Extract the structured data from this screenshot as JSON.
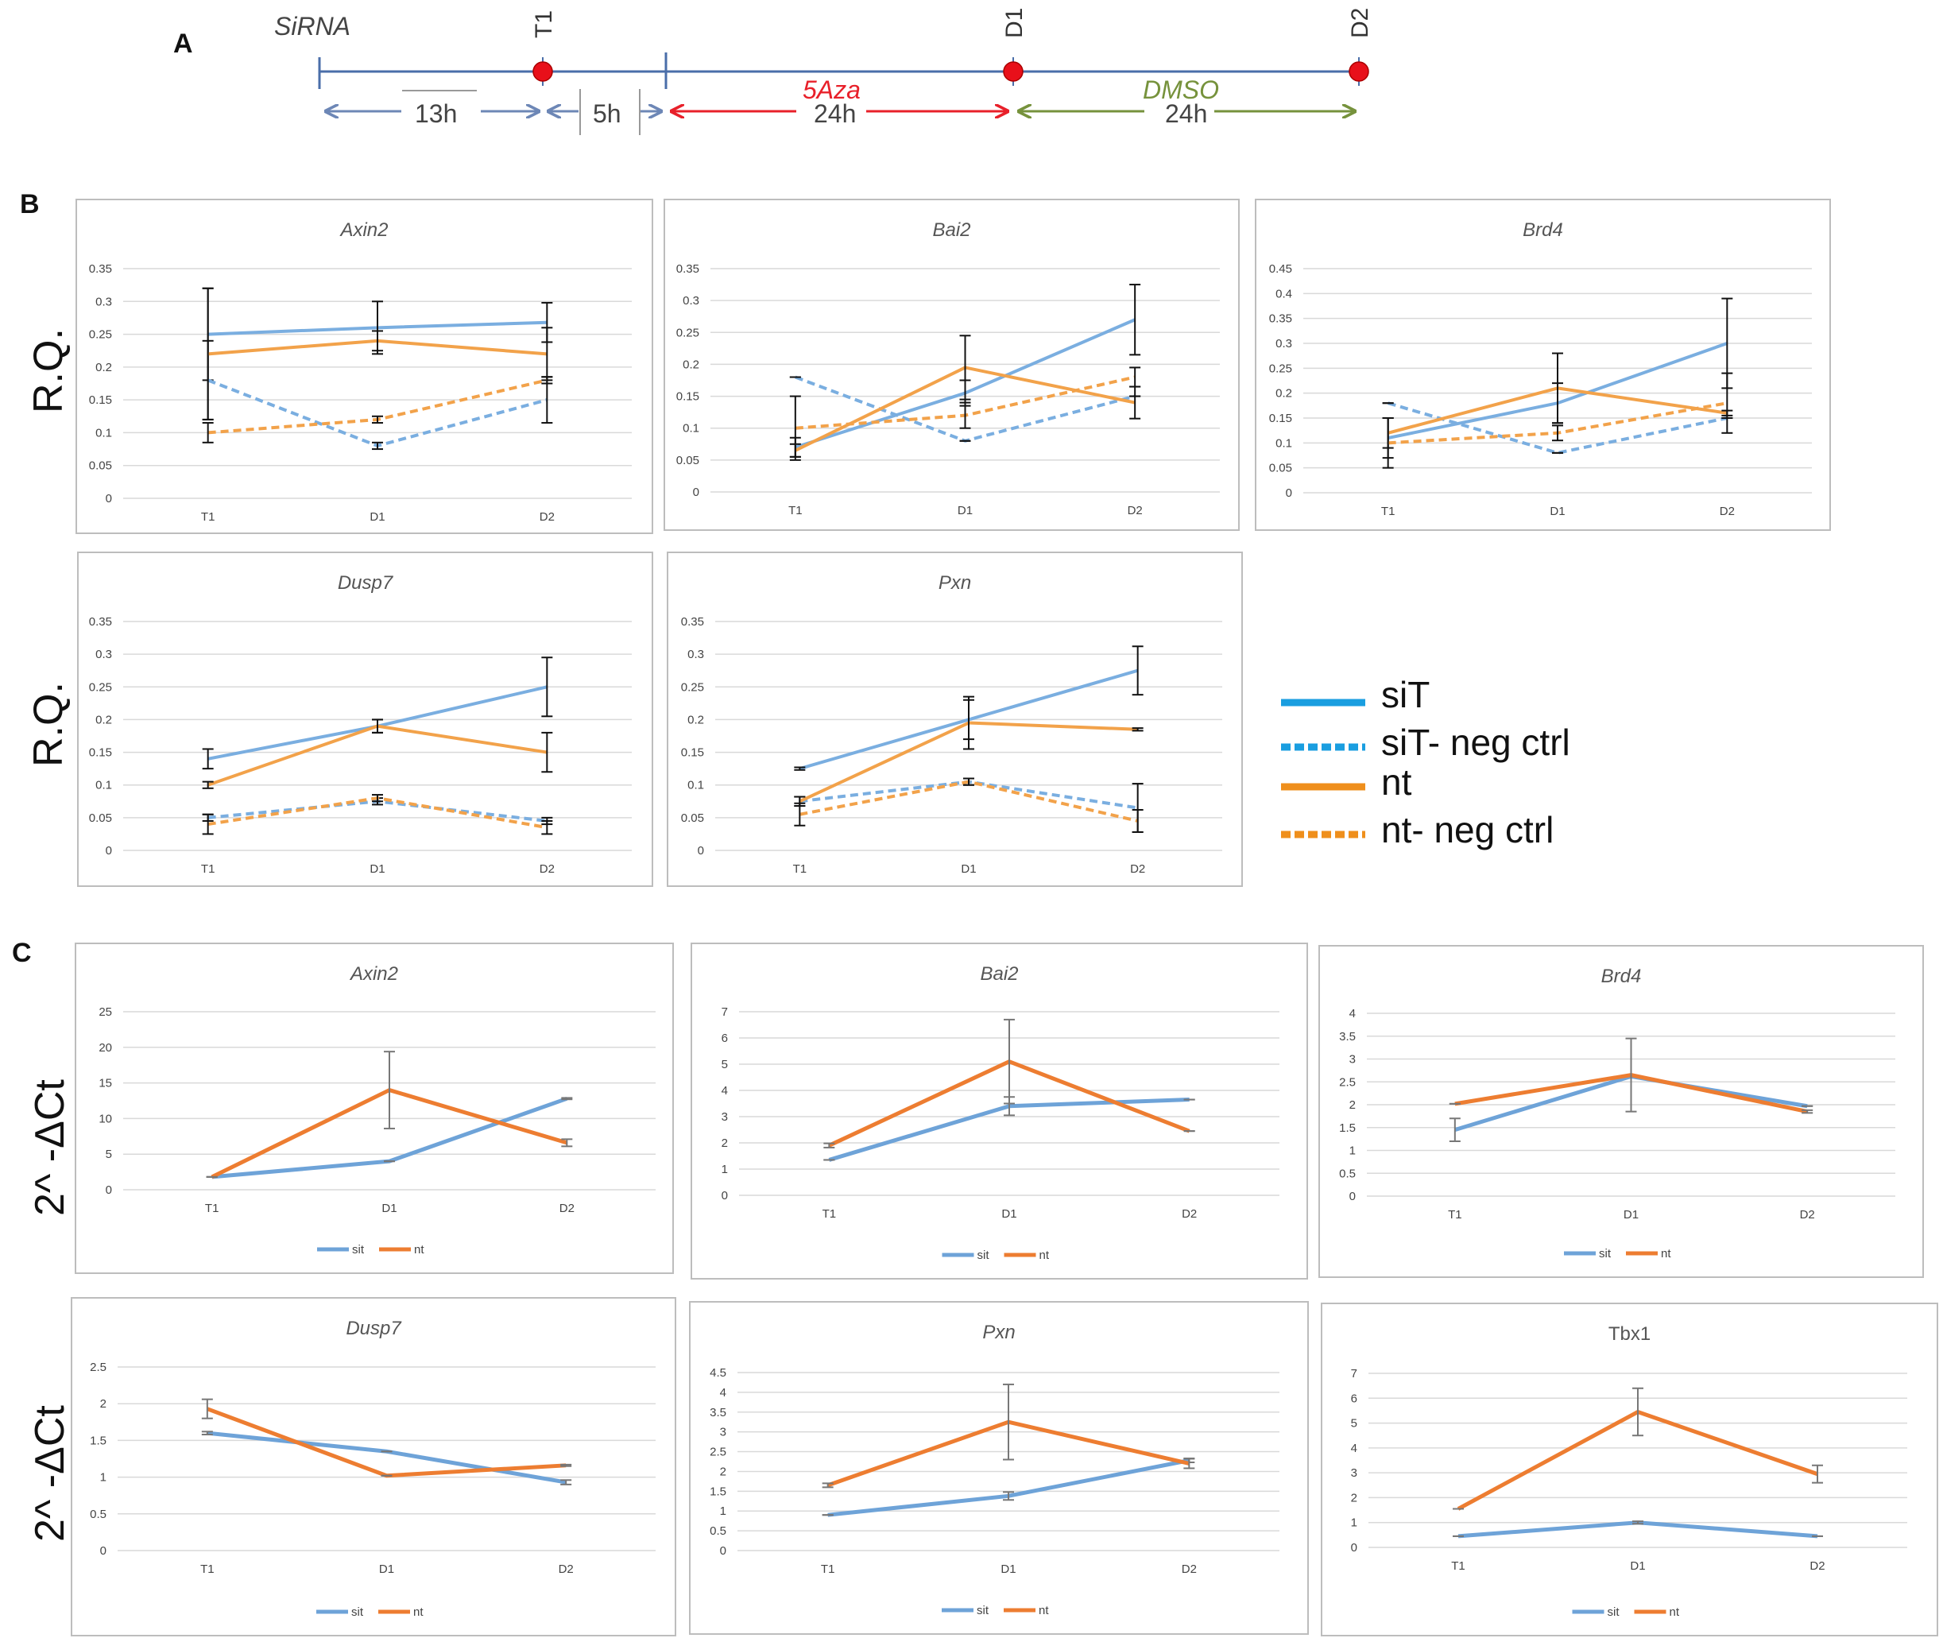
{
  "panels": {
    "a": "A",
    "b": "B",
    "c": "C"
  },
  "timeline": {
    "treatment": "SiRNA",
    "timepoints": [
      "T1",
      "D1",
      "D2"
    ],
    "durations": [
      "13h",
      "5h",
      "24h",
      "24h"
    ],
    "drugs": [
      "5Aza",
      "DMSO"
    ],
    "colors": {
      "axis": "#4a6ea9",
      "aza": "#e8202a",
      "dmso": "#76923c",
      "dot": "#e8101a"
    }
  },
  "ylabels": {
    "b": "R.Q.",
    "c": "2^ -ΔCt"
  },
  "legend_b": {
    "items": [
      {
        "label": "siT",
        "color": "#1a9ee0",
        "dashed": false
      },
      {
        "label": "siT- neg ctrl",
        "color": "#1a9ee0",
        "dashed": true
      },
      {
        "label": "nt",
        "color": "#ef8f1c",
        "dashed": false
      },
      {
        "label": "nt- neg ctrl",
        "color": "#ef8f1c",
        "dashed": true
      }
    ]
  },
  "legend_c": {
    "items": [
      "sit",
      "nt"
    ]
  },
  "colors": {
    "blue": "#7aaee0",
    "orange": "#f2a24a",
    "blue_c": "#6ea3d8",
    "orange_c": "#ed7d31",
    "error": "#111111",
    "error_c": "#777777"
  },
  "chart_data": [
    {
      "id": "B-Axin2",
      "type": "line",
      "title": "Axin2",
      "categories": [
        "T1",
        "D1",
        "D2"
      ],
      "ylim": [
        0,
        0.35
      ],
      "yticks": [
        "0",
        "0.05",
        "0.1",
        "0.15",
        "0.2",
        "0.25",
        "0.3",
        "0.35"
      ],
      "series": [
        {
          "name": "siT",
          "values": [
            0.25,
            0.26,
            0.268
          ],
          "err": [
            0.07,
            0.04,
            0.03
          ]
        },
        {
          "name": "siT- neg ctrl",
          "values": [
            0.18,
            0.08,
            0.15
          ],
          "err": [
            0.06,
            0.005,
            0.035
          ]
        },
        {
          "name": "nt",
          "values": [
            0.22,
            0.24,
            0.22
          ],
          "err": [
            0.1,
            0.015,
            0.04
          ]
        },
        {
          "name": "nt- neg ctrl",
          "values": [
            0.1,
            0.12,
            0.18
          ],
          "err": [
            0.015,
            0.005,
            0.005
          ]
        }
      ]
    },
    {
      "id": "B-Bai2",
      "type": "line",
      "title": "Bai2",
      "categories": [
        "T1",
        "D1",
        "D2"
      ],
      "ylim": [
        0,
        0.35
      ],
      "yticks": [
        "0",
        "0.05",
        "0.1",
        "0.15",
        "0.2",
        "0.25",
        "0.3",
        "0.35"
      ],
      "series": [
        {
          "name": "siT",
          "values": [
            0.07,
            0.155,
            0.27
          ],
          "err": [
            0.015,
            0.02,
            0.055
          ]
        },
        {
          "name": "siT- neg ctrl",
          "values": [
            0.18,
            0.08,
            0.15
          ],
          "err": [
            0.0,
            0.0,
            0.0
          ]
        },
        {
          "name": "nt",
          "values": [
            0.065,
            0.195,
            0.14
          ],
          "err": [
            0.01,
            0.05,
            0.025
          ]
        },
        {
          "name": "nt- neg ctrl",
          "values": [
            0.1,
            0.12,
            0.18
          ],
          "err": [
            0.05,
            0.02,
            0.015
          ]
        }
      ]
    },
    {
      "id": "B-Brd4",
      "type": "line",
      "title": "Brd4",
      "categories": [
        "T1",
        "D1",
        "D2"
      ],
      "ylim": [
        0,
        0.45
      ],
      "yticks": [
        "0",
        "0.05",
        "0.1",
        "0.15",
        "0.2",
        "0.25",
        "0.3",
        "0.35",
        "0.4",
        "0.45"
      ],
      "series": [
        {
          "name": "siT",
          "values": [
            0.11,
            0.18,
            0.3
          ],
          "err": [
            0.04,
            0.04,
            0.09
          ]
        },
        {
          "name": "siT- neg ctrl",
          "values": [
            0.18,
            0.08,
            0.15
          ],
          "err": [
            0.0,
            0.0,
            0.0
          ]
        },
        {
          "name": "nt",
          "values": [
            0.12,
            0.21,
            0.16
          ],
          "err": [
            0.03,
            0.07,
            0.005
          ]
        },
        {
          "name": "nt- neg ctrl",
          "values": [
            0.1,
            0.12,
            0.18
          ],
          "err": [
            0.05,
            0.015,
            0.06
          ]
        }
      ]
    },
    {
      "id": "B-Dusp7",
      "type": "line",
      "title": "Dusp7",
      "categories": [
        "T1",
        "D1",
        "D2"
      ],
      "ylim": [
        0,
        0.35
      ],
      "yticks": [
        "0",
        "0.05",
        "0.1",
        "0.15",
        "0.2",
        "0.25",
        "0.3",
        "0.35"
      ],
      "series": [
        {
          "name": "siT",
          "values": [
            0.14,
            0.19,
            0.25
          ],
          "err": [
            0.015,
            0.01,
            0.045
          ]
        },
        {
          "name": "siT- neg ctrl",
          "values": [
            0.05,
            0.075,
            0.045
          ],
          "err": [
            0.005,
            0.005,
            0.005
          ]
        },
        {
          "name": "nt",
          "values": [
            0.1,
            0.19,
            0.15
          ],
          "err": [
            0.005,
            0.01,
            0.03
          ]
        },
        {
          "name": "nt- neg ctrl",
          "values": [
            0.04,
            0.08,
            0.035
          ],
          "err": [
            0.015,
            0.005,
            0.01
          ]
        }
      ]
    },
    {
      "id": "B-Pxn",
      "type": "line",
      "title": "Pxn",
      "categories": [
        "T1",
        "D1",
        "D2"
      ],
      "ylim": [
        0,
        0.35
      ],
      "yticks": [
        "0",
        "0.05",
        "0.1",
        "0.15",
        "0.2",
        "0.25",
        "0.3",
        "0.35"
      ],
      "series": [
        {
          "name": "siT",
          "values": [
            0.125,
            0.2,
            0.275
          ],
          "err": [
            0.002,
            0.03,
            0.037
          ]
        },
        {
          "name": "siT- neg ctrl",
          "values": [
            0.075,
            0.105,
            0.065
          ],
          "err": [
            0.007,
            0.005,
            0.037
          ]
        },
        {
          "name": "nt",
          "values": [
            0.075,
            0.195,
            0.185
          ],
          "err": [
            0.007,
            0.04,
            0.002
          ]
        },
        {
          "name": "nt- neg ctrl",
          "values": [
            0.055,
            0.105,
            0.045
          ],
          "err": [
            0.017,
            0.005,
            0.017
          ]
        }
      ]
    },
    {
      "id": "C-Axin2",
      "type": "line",
      "title": "Axin2",
      "categories": [
        "T1",
        "D1",
        "D2"
      ],
      "ylim": [
        0,
        25
      ],
      "yticks": [
        "0",
        "5",
        "10",
        "15",
        "20",
        "25"
      ],
      "series": [
        {
          "name": "sit",
          "values": [
            1.8,
            4.0,
            12.8
          ],
          "err": [
            0.0,
            0.0,
            0.1
          ]
        },
        {
          "name": "nt",
          "values": [
            1.8,
            14.0,
            6.6
          ],
          "err": [
            0.0,
            5.4,
            0.5
          ]
        }
      ]
    },
    {
      "id": "C-Bai2",
      "type": "line",
      "title": "Bai2",
      "categories": [
        "T1",
        "D1",
        "D2"
      ],
      "ylim": [
        0,
        7
      ],
      "yticks": [
        "0",
        "1",
        "2",
        "3",
        "4",
        "5",
        "6",
        "7"
      ],
      "series": [
        {
          "name": "sit",
          "values": [
            1.35,
            3.4,
            3.65
          ],
          "err": [
            0.0,
            0.35,
            0.0
          ]
        },
        {
          "name": "nt",
          "values": [
            1.9,
            5.1,
            2.45
          ],
          "err": [
            0.08,
            1.6,
            0.0
          ]
        }
      ]
    },
    {
      "id": "C-Brd4",
      "type": "line",
      "title": "Brd4",
      "categories": [
        "T1",
        "D1",
        "D2"
      ],
      "ylim": [
        0,
        4
      ],
      "yticks": [
        "0",
        "0.5",
        "1",
        "1.5",
        "2",
        "2.5",
        "3",
        "3.5",
        "4"
      ],
      "series": [
        {
          "name": "sit",
          "values": [
            1.45,
            2.62,
            1.97
          ],
          "err": [
            0.25,
            0.0,
            0.0
          ]
        },
        {
          "name": "nt",
          "values": [
            2.02,
            2.65,
            1.85
          ],
          "err": [
            0.0,
            0.8,
            0.03
          ]
        }
      ]
    },
    {
      "id": "C-Dusp7",
      "type": "line",
      "title": "Dusp7",
      "categories": [
        "T1",
        "D1",
        "D2"
      ],
      "ylim": [
        0,
        2.5
      ],
      "yticks": [
        "0",
        "0.5",
        "1",
        "1.5",
        "2",
        "2.5"
      ],
      "series": [
        {
          "name": "sit",
          "values": [
            1.6,
            1.35,
            0.93
          ],
          "err": [
            0.02,
            0.0,
            0.03
          ]
        },
        {
          "name": "nt",
          "values": [
            1.93,
            1.02,
            1.16
          ],
          "err": [
            0.13,
            0.0,
            0.01
          ]
        }
      ]
    },
    {
      "id": "C-Pxn",
      "type": "line",
      "title": "Pxn",
      "categories": [
        "T1",
        "D1",
        "D2"
      ],
      "ylim": [
        0,
        4.5
      ],
      "yticks": [
        "0",
        "0.5",
        "1",
        "1.5",
        "2",
        "2.5",
        "3",
        "3.5",
        "4",
        "4.5"
      ],
      "series": [
        {
          "name": "sit",
          "values": [
            0.9,
            1.38,
            2.28
          ],
          "err": [
            0.0,
            0.1,
            0.05
          ]
        },
        {
          "name": "nt",
          "values": [
            1.65,
            3.25,
            2.2
          ],
          "err": [
            0.05,
            0.95,
            0.12
          ]
        }
      ]
    },
    {
      "id": "C-Tbx1",
      "type": "line",
      "title": "Tbx1",
      "italic_title": false,
      "categories": [
        "T1",
        "D1",
        "D2"
      ],
      "ylim": [
        0,
        7
      ],
      "yticks": [
        "0",
        "1",
        "2",
        "3",
        "4",
        "5",
        "6",
        "7"
      ],
      "series": [
        {
          "name": "sit",
          "values": [
            0.45,
            1.0,
            0.45
          ],
          "err": [
            0.0,
            0.05,
            0.0
          ]
        },
        {
          "name": "nt",
          "values": [
            1.55,
            5.45,
            2.95
          ],
          "err": [
            0.0,
            0.95,
            0.35
          ]
        }
      ]
    }
  ]
}
